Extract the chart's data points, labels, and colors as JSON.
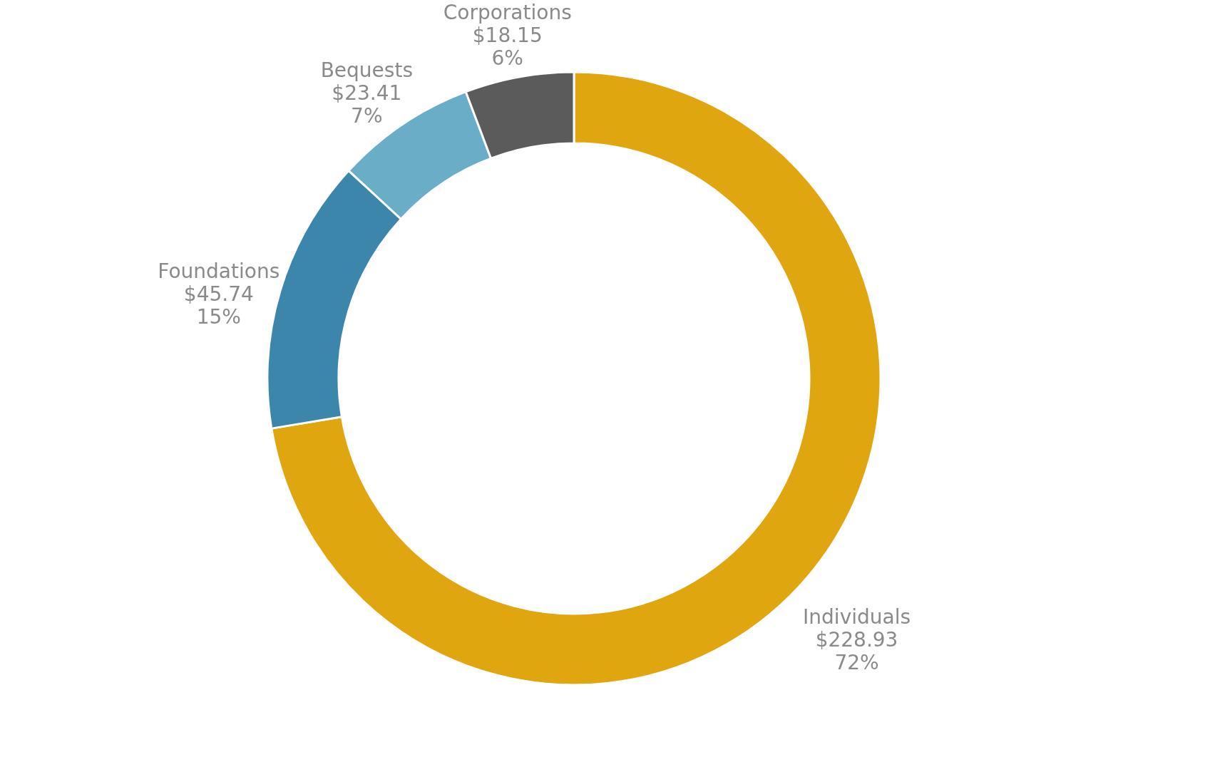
{
  "chart_data": {
    "type": "donut",
    "categories": [
      "Individuals",
      "Foundations",
      "Bequests",
      "Corporations"
    ],
    "values": [
      228.93,
      45.74,
      23.41,
      18.15
    ],
    "colors": [
      "#e0a60f",
      "#3d86ab",
      "#6aadc6",
      "#5b5b5b"
    ],
    "value_labels": [
      "$228.93\n72%",
      "$45.74\n15%",
      "$23.41\n7%",
      "$18.15\n6%"
    ],
    "legend": false
  }
}
